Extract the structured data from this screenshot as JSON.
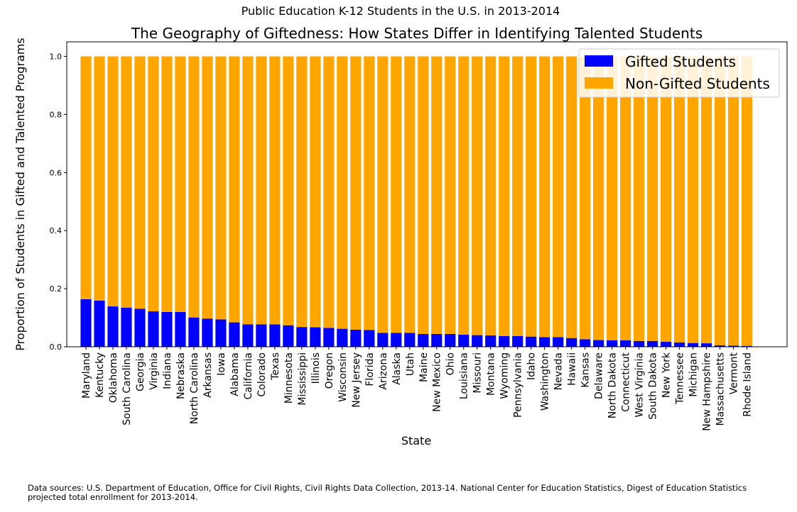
{
  "suptitle": "Public Education K-12 Students in the U.S. in 2013-2014",
  "footnote": "Data sources: U.S. Department of Education, Office for Civil Rights, Civil Rights Data Collection, 2013-14. National Center for Education Statistics, Digest of Education Statistics projected total enrollment for 2013-2014.",
  "colors": {
    "gifted": "#0000ff",
    "non_gifted": "#ffa500"
  },
  "chart_data": {
    "type": "bar",
    "stacked": true,
    "title": "The Geography of Giftedness: How States Differ in Identifying Talented Students",
    "xlabel": "State",
    "ylabel": "Proportion of Students in Gifted and Talented Programs",
    "ylim": [
      0,
      1.05
    ],
    "yticks": [
      "0.0",
      "0.2",
      "0.4",
      "0.6",
      "0.8",
      "1.0"
    ],
    "grid": false,
    "legend_position": "top-right",
    "categories": [
      "Maryland",
      "Kentucky",
      "Oklahoma",
      "South Carolina",
      "Georgia",
      "Virginia",
      "Indiana",
      "Nebraska",
      "North Carolina",
      "Arkansas",
      "Iowa",
      "Alabama",
      "California",
      "Colorado",
      "Texas",
      "Minnesota",
      "Mississippi",
      "Illinois",
      "Oregon",
      "Wisconsin",
      "New Jersey",
      "Florida",
      "Arizona",
      "Alaska",
      "Utah",
      "Maine",
      "New Mexico",
      "Ohio",
      "Louisiana",
      "Missouri",
      "Montana",
      "Wyoming",
      "Pennsylvania",
      "Idaho",
      "Washington",
      "Nevada",
      "Hawaii",
      "Kansas",
      "Delaware",
      "North Dakota",
      "Connecticut",
      "West Virginia",
      "South Dakota",
      "New York",
      "Tennessee",
      "Michigan",
      "New Hampshire",
      "Massachusetts",
      "Vermont",
      "Rhode Island"
    ],
    "series": [
      {
        "name": "Gifted Students",
        "values": [
          0.164,
          0.159,
          0.139,
          0.135,
          0.131,
          0.122,
          0.12,
          0.12,
          0.101,
          0.097,
          0.094,
          0.084,
          0.077,
          0.077,
          0.077,
          0.074,
          0.068,
          0.067,
          0.065,
          0.062,
          0.059,
          0.058,
          0.048,
          0.048,
          0.048,
          0.044,
          0.044,
          0.044,
          0.042,
          0.04,
          0.039,
          0.037,
          0.037,
          0.035,
          0.033,
          0.033,
          0.03,
          0.026,
          0.023,
          0.022,
          0.022,
          0.02,
          0.02,
          0.017,
          0.015,
          0.013,
          0.012,
          0.005,
          0.004,
          0.003
        ]
      },
      {
        "name": "Non-Gifted Students",
        "values": [
          0.836,
          0.841,
          0.861,
          0.865,
          0.869,
          0.878,
          0.88,
          0.88,
          0.899,
          0.903,
          0.906,
          0.916,
          0.923,
          0.923,
          0.923,
          0.926,
          0.932,
          0.933,
          0.935,
          0.938,
          0.941,
          0.942,
          0.952,
          0.952,
          0.952,
          0.956,
          0.956,
          0.956,
          0.958,
          0.96,
          0.961,
          0.963,
          0.963,
          0.965,
          0.967,
          0.967,
          0.97,
          0.974,
          0.977,
          0.978,
          0.978,
          0.98,
          0.98,
          0.983,
          0.985,
          0.987,
          0.988,
          0.995,
          0.996,
          0.997
        ]
      }
    ]
  }
}
